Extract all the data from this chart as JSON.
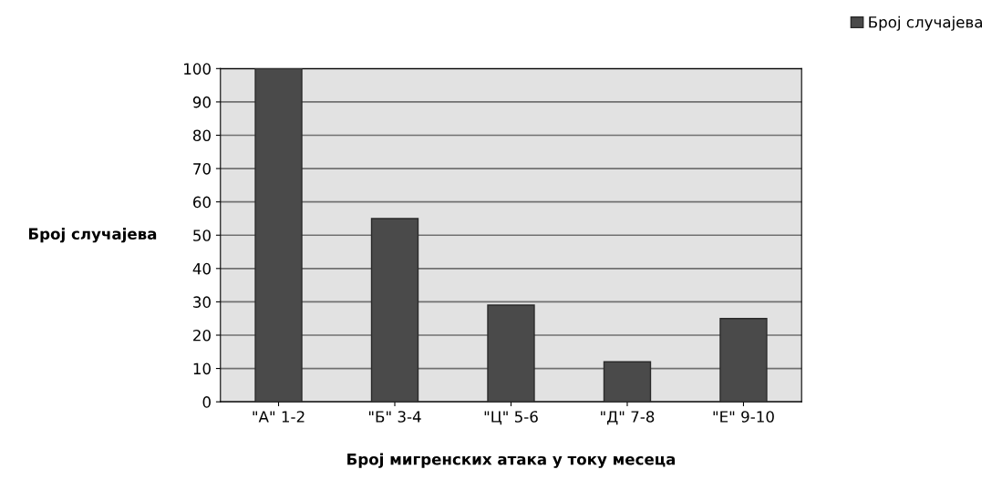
{
  "chart_data": {
    "type": "bar",
    "xlabel": "Број мигренских атака у току месеца",
    "ylabel": "Број случајева",
    "categories": [
      "\"А\" 1-2",
      "\"Б\" 3-4",
      "\"Ц\" 5-6",
      "\"Д\" 7-8",
      "\"Е\" 9-10"
    ],
    "series": [
      {
        "name": "Број случајева",
        "color": "#4a4a4a",
        "values": [
          100,
          55,
          29,
          12,
          25
        ]
      }
    ],
    "ylim": [
      0,
      100
    ],
    "yticks": [
      0,
      10,
      20,
      30,
      40,
      50,
      60,
      70,
      80,
      90,
      100
    ],
    "grid": "y",
    "legend": "top right"
  }
}
